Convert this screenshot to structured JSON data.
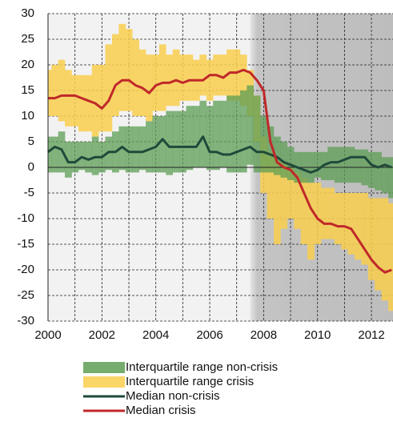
{
  "chart_data": {
    "type": "band_line",
    "x": [
      2000,
      2000.25,
      2000.5,
      2000.75,
      2001,
      2001.25,
      2001.5,
      2001.75,
      2002,
      2002.25,
      2002.5,
      2002.75,
      2003,
      2003.25,
      2003.5,
      2003.75,
      2004,
      2004.25,
      2004.5,
      2004.75,
      2005,
      2005.25,
      2005.5,
      2005.75,
      2006,
      2006.25,
      2006.5,
      2006.75,
      2007,
      2007.25,
      2007.5,
      2007.75,
      2008,
      2008.25,
      2008.5,
      2008.75,
      2009,
      2009.25,
      2009.5,
      2009.75,
      2010,
      2010.25,
      2010.5,
      2010.75,
      2011,
      2011.25,
      2011.5,
      2011.75,
      2012,
      2012.25,
      2012.5,
      2012.75
    ],
    "series": [
      {
        "name": "Interquartile range crisis",
        "color": "#f9cf4f",
        "low": [
          10,
          10,
          9,
          8,
          8,
          7,
          7,
          6,
          7,
          7,
          10,
          11,
          11,
          10,
          10,
          9,
          11,
          11,
          12,
          12,
          13,
          13,
          13,
          14,
          13,
          14,
          14,
          13,
          13,
          12,
          10,
          5,
          -5,
          -10,
          -15,
          -12,
          -10,
          -12,
          -15,
          -18,
          -15,
          -14,
          -14,
          -15,
          -16,
          -17,
          -18,
          -19,
          -22,
          -24,
          -26,
          -28
        ],
        "high": [
          19,
          20,
          21,
          19,
          18,
          18,
          18,
          20,
          20,
          24,
          26,
          28,
          27,
          25,
          23,
          22,
          22,
          24,
          22,
          23,
          22,
          22,
          21,
          22,
          21,
          22,
          22,
          23,
          23,
          22,
          19,
          14,
          6,
          3,
          2,
          1,
          0,
          -1,
          -2,
          -3,
          -3,
          -4,
          -4,
          -5,
          -5,
          -5,
          -5,
          -5,
          -6,
          -6,
          -6,
          -7
        ]
      },
      {
        "name": "Interquartile range non-crisis",
        "color": "#5e9e55",
        "low": [
          -1,
          -1,
          -1,
          -2,
          -1,
          -0.5,
          -1,
          -1.5,
          -1,
          -0.5,
          -1,
          -0.5,
          -1,
          -1,
          -0.5,
          -1,
          -1,
          -1,
          -1.5,
          -1,
          -1,
          -0.5,
          0,
          0,
          -0.5,
          -0.5,
          0,
          -1,
          -1,
          -1,
          0.5,
          -1,
          -1,
          -1,
          -1.5,
          -2,
          -2.5,
          -3,
          -3,
          -3,
          -2,
          -2.5,
          -2.5,
          -3,
          -3,
          -3,
          -3,
          -3.5,
          -4,
          -4.5,
          -5,
          -6
        ],
        "high": [
          6,
          6,
          7,
          5,
          5,
          5,
          5,
          6,
          5,
          6,
          7,
          8,
          8,
          8,
          8,
          9,
          10,
          10,
          11,
          11,
          11,
          12,
          12,
          13,
          12,
          13,
          13,
          14,
          14,
          15,
          16,
          14,
          10,
          8,
          6,
          5,
          4,
          3,
          3,
          3,
          3,
          3,
          4,
          4,
          4,
          4,
          3.5,
          3.5,
          3,
          3,
          2,
          2
        ]
      },
      {
        "name": "Median non-crisis",
        "color": "#1f4a3a",
        "values": [
          3,
          4,
          3.5,
          1,
          1,
          2,
          1.5,
          2,
          2,
          3,
          3,
          4,
          3,
          3,
          3,
          3.5,
          4,
          5.5,
          4,
          4,
          4,
          4,
          4,
          6,
          3,
          3,
          2.5,
          2.5,
          3,
          3.5,
          4,
          3,
          3,
          2.5,
          2,
          1,
          0.5,
          0,
          -0.5,
          -1,
          -0.5,
          0.5,
          1,
          1,
          1.5,
          2,
          2,
          2,
          0.5,
          0,
          0.5,
          0
        ]
      },
      {
        "name": "Median crisis",
        "color": "#c0282a",
        "values": [
          13.5,
          13.5,
          14,
          14,
          14,
          13.5,
          13,
          12.5,
          11.5,
          13,
          16,
          17,
          17,
          16,
          15.5,
          14.5,
          16,
          16.5,
          16.5,
          17,
          16.5,
          17,
          17,
          17,
          18,
          18,
          17.5,
          18.5,
          18.5,
          19,
          18.5,
          17,
          15,
          5,
          1,
          0,
          -0.5,
          -2,
          -5,
          -8,
          -10,
          -11,
          -11,
          -11.5,
          -11.5,
          -12,
          -14,
          -16,
          -18,
          -19.5,
          -20.5,
          -20
        ]
      }
    ],
    "legend_order": [
      1,
      0,
      2,
      3
    ],
    "shaded_region": [
      2007.5,
      2012.8
    ],
    "xlim": [
      2000,
      2012.8
    ],
    "xticks": [
      2000,
      2002,
      2004,
      2006,
      2008,
      2010,
      2012
    ],
    "xminor": [
      2001,
      2003,
      2005,
      2007,
      2009,
      2011
    ],
    "ylim": [
      -30,
      30
    ],
    "yticks": [
      -30,
      -25,
      -20,
      -15,
      -10,
      -5,
      0,
      5,
      10,
      15,
      20,
      25,
      30
    ],
    "grid": true
  }
}
